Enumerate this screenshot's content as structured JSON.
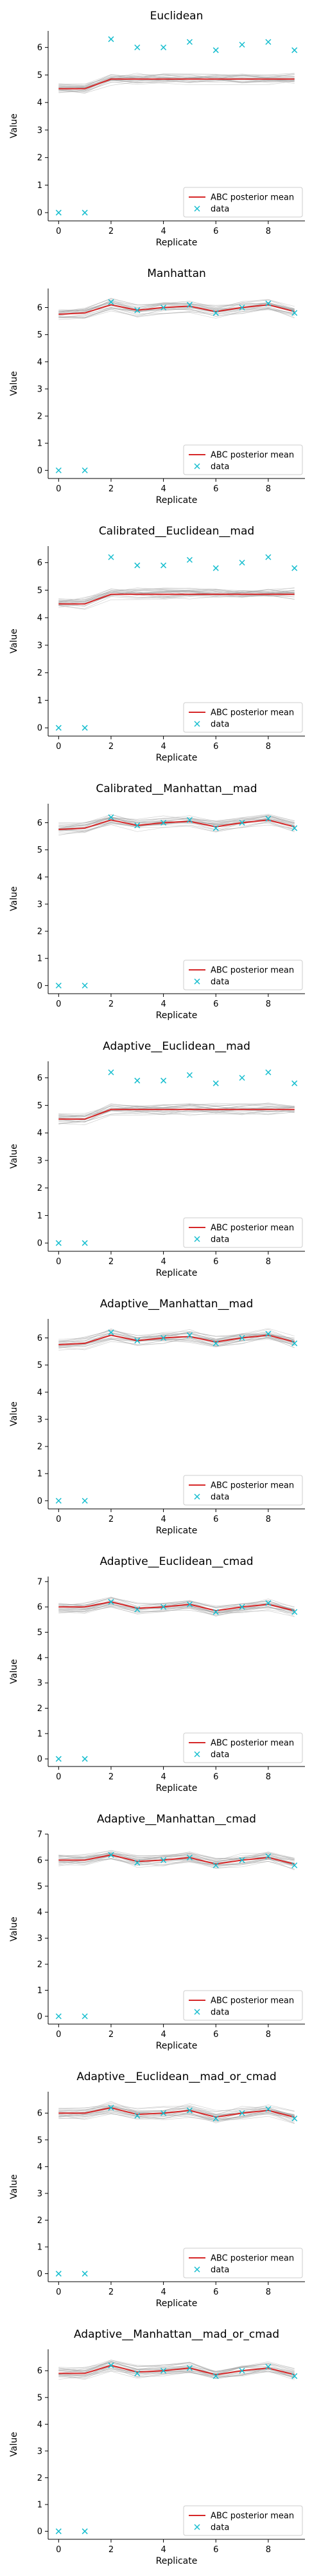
{
  "colors": {
    "mean": "#d62728",
    "data": "#17becf",
    "traces": "#9a9a9a"
  },
  "chart_data": [
    {
      "type": "line",
      "title": "Euclidean",
      "xlabel": "Replicate",
      "ylabel": "Value",
      "x": [
        0,
        1,
        2,
        3,
        4,
        5,
        6,
        7,
        8,
        9
      ],
      "xticks": [
        0,
        2,
        4,
        6,
        8
      ],
      "ylim": [
        -0.3,
        6.6
      ],
      "yticks": [
        0,
        1,
        2,
        3,
        4,
        5,
        6
      ],
      "series": [
        {
          "name": "ABC posterior mean",
          "values": [
            4.5,
            4.5,
            4.85,
            4.85,
            4.85,
            4.85,
            4.85,
            4.85,
            4.85,
            4.85
          ]
        },
        {
          "name": "data",
          "marker": "x",
          "values": [
            0,
            0,
            6.3,
            6.0,
            6.0,
            6.2,
            5.9,
            6.1,
            6.2,
            5.9
          ]
        }
      ],
      "legend": "lower-right",
      "grid": false
    },
    {
      "type": "line",
      "title": "Manhattan",
      "xlabel": "Replicate",
      "ylabel": "Value",
      "x": [
        0,
        1,
        2,
        3,
        4,
        5,
        6,
        7,
        8,
        9
      ],
      "xticks": [
        0,
        2,
        4,
        6,
        8
      ],
      "ylim": [
        -0.3,
        6.7
      ],
      "yticks": [
        0,
        1,
        2,
        3,
        4,
        5,
        6
      ],
      "series": [
        {
          "name": "ABC posterior mean",
          "values": [
            5.75,
            5.8,
            6.1,
            5.9,
            6.0,
            6.05,
            5.85,
            6.0,
            6.1,
            5.85
          ]
        },
        {
          "name": "data",
          "marker": "x",
          "values": [
            0,
            0,
            6.2,
            5.9,
            6.0,
            6.1,
            5.8,
            6.0,
            6.15,
            5.8
          ]
        }
      ],
      "legend": "lower-right",
      "grid": false
    },
    {
      "type": "line",
      "title": "Calibrated__Euclidean__mad",
      "xlabel": "Replicate",
      "ylabel": "Value",
      "x": [
        0,
        1,
        2,
        3,
        4,
        5,
        6,
        7,
        8,
        9
      ],
      "xticks": [
        0,
        2,
        4,
        6,
        8
      ],
      "ylim": [
        -0.3,
        6.6
      ],
      "yticks": [
        0,
        1,
        2,
        3,
        4,
        5,
        6
      ],
      "series": [
        {
          "name": "ABC posterior mean",
          "values": [
            4.5,
            4.5,
            4.85,
            4.85,
            4.85,
            4.85,
            4.85,
            4.85,
            4.85,
            4.85
          ]
        },
        {
          "name": "data",
          "marker": "x",
          "values": [
            0,
            0,
            6.2,
            5.9,
            5.9,
            6.1,
            5.8,
            6.0,
            6.2,
            5.8
          ]
        }
      ],
      "legend": "lower-right",
      "grid": false
    },
    {
      "type": "line",
      "title": "Calibrated__Manhattan__mad",
      "xlabel": "Replicate",
      "ylabel": "Value",
      "x": [
        0,
        1,
        2,
        3,
        4,
        5,
        6,
        7,
        8,
        9
      ],
      "xticks": [
        0,
        2,
        4,
        6,
        8
      ],
      "ylim": [
        -0.3,
        6.7
      ],
      "yticks": [
        0,
        1,
        2,
        3,
        4,
        5,
        6
      ],
      "series": [
        {
          "name": "ABC posterior mean",
          "values": [
            5.75,
            5.8,
            6.1,
            5.9,
            6.0,
            6.05,
            5.85,
            6.0,
            6.1,
            5.85
          ]
        },
        {
          "name": "data",
          "marker": "x",
          "values": [
            0,
            0,
            6.2,
            5.9,
            6.0,
            6.1,
            5.8,
            6.0,
            6.15,
            5.8
          ]
        }
      ],
      "legend": "lower-right",
      "grid": false
    },
    {
      "type": "line",
      "title": "Adaptive__Euclidean__mad",
      "xlabel": "Replicate",
      "ylabel": "Value",
      "x": [
        0,
        1,
        2,
        3,
        4,
        5,
        6,
        7,
        8,
        9
      ],
      "xticks": [
        0,
        2,
        4,
        6,
        8
      ],
      "ylim": [
        -0.3,
        6.6
      ],
      "yticks": [
        0,
        1,
        2,
        3,
        4,
        5,
        6
      ],
      "series": [
        {
          "name": "ABC posterior mean",
          "values": [
            4.5,
            4.5,
            4.85,
            4.85,
            4.85,
            4.85,
            4.85,
            4.85,
            4.85,
            4.85
          ]
        },
        {
          "name": "data",
          "marker": "x",
          "values": [
            0,
            0,
            6.2,
            5.9,
            5.9,
            6.1,
            5.8,
            6.0,
            6.2,
            5.8
          ]
        }
      ],
      "legend": "lower-right",
      "grid": false
    },
    {
      "type": "line",
      "title": "Adaptive__Manhattan__mad",
      "xlabel": "Replicate",
      "ylabel": "Value",
      "x": [
        0,
        1,
        2,
        3,
        4,
        5,
        6,
        7,
        8,
        9
      ],
      "xticks": [
        0,
        2,
        4,
        6,
        8
      ],
      "ylim": [
        -0.3,
        6.7
      ],
      "yticks": [
        0,
        1,
        2,
        3,
        4,
        5,
        6
      ],
      "series": [
        {
          "name": "ABC posterior mean",
          "values": [
            5.75,
            5.8,
            6.1,
            5.9,
            6.0,
            6.05,
            5.85,
            6.0,
            6.1,
            5.85
          ]
        },
        {
          "name": "data",
          "marker": "x",
          "values": [
            0,
            0,
            6.2,
            5.9,
            6.0,
            6.1,
            5.8,
            6.0,
            6.15,
            5.8
          ]
        }
      ],
      "legend": "lower-right",
      "grid": false
    },
    {
      "type": "line",
      "title": "Adaptive__Euclidean__cmad",
      "xlabel": "Replicate",
      "ylabel": "Value",
      "x": [
        0,
        1,
        2,
        3,
        4,
        5,
        6,
        7,
        8,
        9
      ],
      "xticks": [
        0,
        2,
        4,
        6,
        8
      ],
      "ylim": [
        -0.3,
        7.2
      ],
      "yticks": [
        0,
        1,
        2,
        3,
        4,
        5,
        6,
        7
      ],
      "series": [
        {
          "name": "ABC posterior mean",
          "values": [
            6.0,
            6.0,
            6.2,
            5.95,
            6.0,
            6.1,
            5.85,
            6.0,
            6.1,
            5.85
          ]
        },
        {
          "name": "data",
          "marker": "x",
          "values": [
            0,
            0,
            6.2,
            5.9,
            6.0,
            6.1,
            5.8,
            6.0,
            6.15,
            5.8
          ]
        }
      ],
      "legend": "lower-right",
      "grid": false
    },
    {
      "type": "line",
      "title": "Adaptive__Manhattan__cmad",
      "xlabel": "Replicate",
      "ylabel": "Value",
      "x": [
        0,
        1,
        2,
        3,
        4,
        5,
        6,
        7,
        8,
        9
      ],
      "xticks": [
        0,
        2,
        4,
        6,
        8
      ],
      "ylim": [
        -0.3,
        7.0
      ],
      "yticks": [
        0,
        1,
        2,
        3,
        4,
        5,
        6,
        7
      ],
      "series": [
        {
          "name": "ABC posterior mean",
          "values": [
            6.0,
            6.0,
            6.2,
            5.95,
            6.0,
            6.1,
            5.85,
            6.0,
            6.1,
            5.85
          ]
        },
        {
          "name": "data",
          "marker": "x",
          "values": [
            0,
            0,
            6.2,
            5.9,
            6.0,
            6.1,
            5.8,
            6.0,
            6.15,
            5.8
          ]
        }
      ],
      "legend": "lower-right",
      "grid": false
    },
    {
      "type": "line",
      "title": "Adaptive__Euclidean__mad_or_cmad",
      "xlabel": "Replicate",
      "ylabel": "Value",
      "x": [
        0,
        1,
        2,
        3,
        4,
        5,
        6,
        7,
        8,
        9
      ],
      "xticks": [
        0,
        2,
        4,
        6,
        8
      ],
      "ylim": [
        -0.3,
        6.8
      ],
      "yticks": [
        0,
        1,
        2,
        3,
        4,
        5,
        6
      ],
      "series": [
        {
          "name": "ABC posterior mean",
          "values": [
            6.0,
            6.0,
            6.2,
            5.95,
            6.0,
            6.1,
            5.85,
            6.0,
            6.1,
            5.85
          ]
        },
        {
          "name": "data",
          "marker": "x",
          "values": [
            0,
            0,
            6.2,
            5.9,
            6.0,
            6.1,
            5.8,
            6.0,
            6.15,
            5.8
          ]
        }
      ],
      "legend": "lower-right",
      "grid": false
    },
    {
      "type": "line",
      "title": "Adaptive__Manhattan__mad_or_cmad",
      "xlabel": "Replicate",
      "ylabel": "Value",
      "x": [
        0,
        1,
        2,
        3,
        4,
        5,
        6,
        7,
        8,
        9
      ],
      "xticks": [
        0,
        2,
        4,
        6,
        8
      ],
      "ylim": [
        -0.3,
        6.8
      ],
      "yticks": [
        0,
        1,
        2,
        3,
        4,
        5,
        6
      ],
      "series": [
        {
          "name": "ABC posterior mean",
          "values": [
            5.9,
            5.9,
            6.2,
            5.95,
            6.0,
            6.1,
            5.85,
            6.0,
            6.1,
            5.85
          ]
        },
        {
          "name": "data",
          "marker": "x",
          "values": [
            0,
            0,
            6.2,
            5.9,
            6.0,
            6.1,
            5.8,
            6.0,
            6.15,
            5.8
          ]
        }
      ],
      "legend": "lower-right",
      "grid": false
    }
  ]
}
